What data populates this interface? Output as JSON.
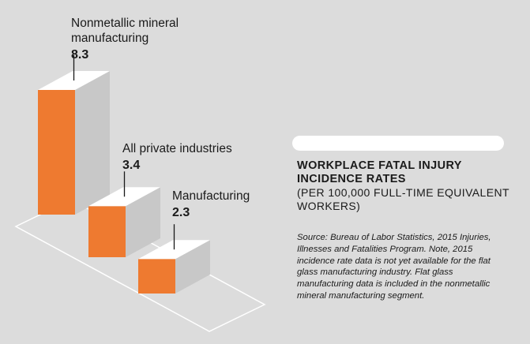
{
  "colors": {
    "background": "#dcdcdc",
    "bar_front": "#ee7a30",
    "bar_top": "#ffffff",
    "bar_side": "#c8c8c8",
    "text": "#1a1a1a"
  },
  "chart_data": {
    "type": "bar",
    "style": "3d-isometric",
    "categories": [
      "Nonmetallic mineral manufacturing",
      "All private industries",
      "Manufacturing"
    ],
    "values": [
      8.3,
      3.4,
      2.3
    ],
    "label_lines": [
      [
        "Nonmetallic mineral",
        "manufacturing"
      ],
      [
        "All private industries"
      ],
      [
        "Manufacturing"
      ]
    ],
    "value_labels": [
      "8.3",
      "3.4",
      "2.3"
    ],
    "title": "WORKPLACE FATAL INJURY INCIDENCE RATES",
    "subtitle": "(PER 100,000 FULL-TIME EQUIVALENT WORKERS)",
    "source": "Source: Bureau of Labor Statistics, 2015 Injuries, Illnesses and Fatalities Program. Note, 2015 incidence rate data is not yet available for the flat glass manufacturing industry. Flat glass manufacturing data is included in the nonmetallic mineral manufacturing segment."
  }
}
